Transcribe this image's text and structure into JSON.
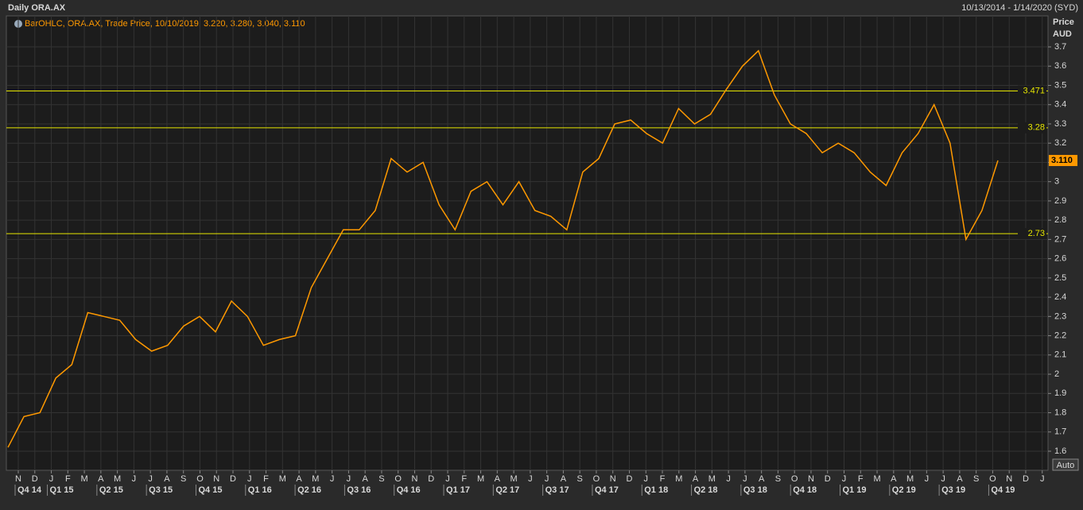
{
  "chart_data": {
    "type": "line",
    "title": "Daily ORA.AX",
    "date_range": "10/13/2014 - 1/14/2020 (SYD)",
    "legend_text": "BarOHLC, ORA.AX, Trade Price, 10/10/2019, 3.220, 3.280, 3.040, 3.110",
    "y_axis_label": "Price",
    "y_axis_unit": "AUD",
    "button": "Auto",
    "color": "#ff9900",
    "values": [
      1.62,
      1.78,
      1.8,
      1.98,
      2.05,
      2.32,
      2.3,
      2.28,
      2.18,
      2.12,
      2.15,
      2.25,
      2.3,
      2.22,
      2.38,
      2.3,
      2.15,
      2.18,
      2.2,
      2.45,
      2.6,
      2.75,
      2.75,
      2.85,
      3.12,
      3.05,
      3.1,
      2.88,
      2.75,
      2.95,
      3.0,
      2.88,
      3.0,
      2.85,
      2.82,
      2.75,
      3.05,
      3.12,
      3.3,
      3.32,
      3.25,
      3.2,
      3.38,
      3.3,
      3.35,
      3.48,
      3.6,
      3.68,
      3.45,
      3.3,
      3.25,
      3.15,
      3.2,
      3.15,
      3.05,
      2.98,
      3.15,
      3.25,
      3.4,
      3.2,
      2.7,
      2.85,
      3.11
    ],
    "ylim": [
      1.501,
      3.861
    ],
    "yticks": [
      1.6,
      1.7,
      1.8,
      1.9,
      2,
      2.1,
      2.2,
      2.3,
      2.4,
      2.5,
      2.6,
      2.7,
      2.8,
      2.9,
      3,
      3.1,
      3.2,
      3.3,
      3.4,
      3.5,
      3.6,
      3.7
    ],
    "levels": [
      3.471,
      3.28,
      2.73
    ],
    "last_price": {
      "value": 3.11,
      "label": "3.110"
    },
    "x_months": [
      "N",
      "D",
      "J",
      "F",
      "M",
      "A",
      "M",
      "J",
      "J",
      "A",
      "S",
      "O",
      "N",
      "D",
      "J",
      "F",
      "M",
      "A",
      "M",
      "J",
      "J",
      "A",
      "S",
      "O",
      "N",
      "D",
      "J",
      "F",
      "M",
      "A",
      "M",
      "J",
      "J",
      "A",
      "S",
      "O",
      "N",
      "D",
      "J",
      "F",
      "M",
      "A",
      "M",
      "J",
      "J",
      "A",
      "S",
      "O",
      "N",
      "D",
      "J",
      "F",
      "M",
      "A",
      "M",
      "J",
      "J",
      "A",
      "S",
      "O",
      "N",
      "D",
      "J"
    ],
    "x_quarters": [
      "Q4 14",
      "Q1 15",
      "Q2 15",
      "Q3 15",
      "Q4 15",
      "Q1 16",
      "Q2 16",
      "Q3 16",
      "Q4 16",
      "Q1 17",
      "Q2 17",
      "Q3 17",
      "Q4 17",
      "Q1 18",
      "Q2 18",
      "Q3 18",
      "Q4 18",
      "Q1 19",
      "Q2 19",
      "Q3 19",
      "Q4 19"
    ],
    "grid": true
  }
}
